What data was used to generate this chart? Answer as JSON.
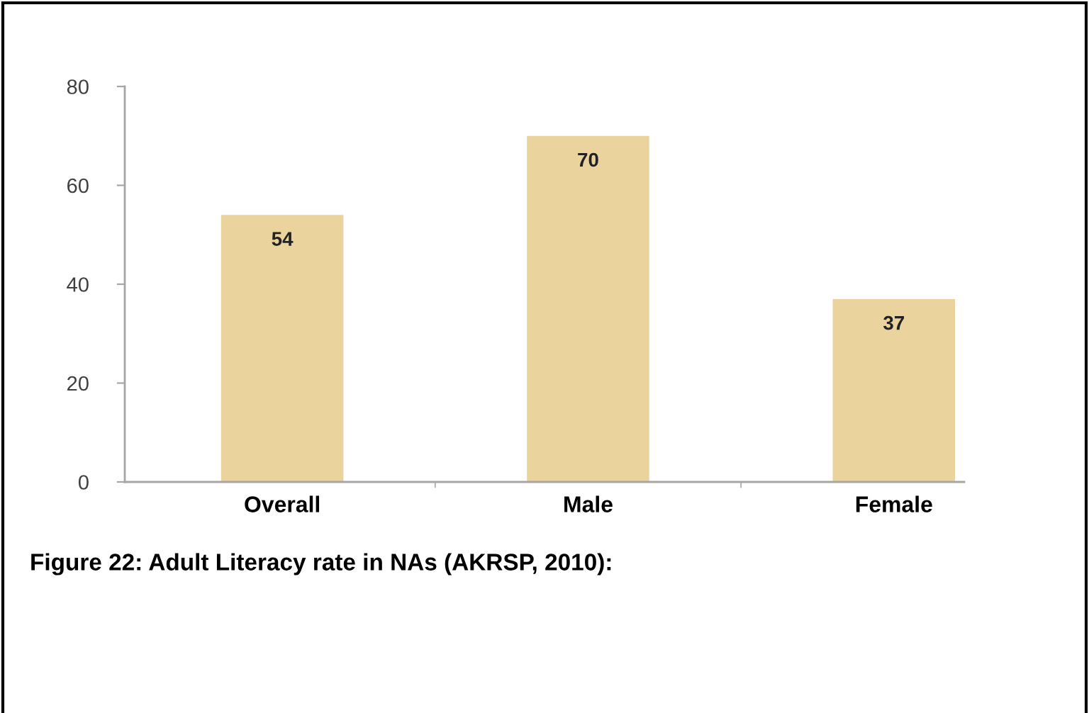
{
  "chart_data": {
    "type": "bar",
    "categories": [
      "Overall",
      "Male",
      "Female"
    ],
    "values": [
      54,
      70,
      37
    ],
    "color": "#ead39d",
    "ylim": [
      0,
      80
    ],
    "yticks": [
      0,
      20,
      40,
      60,
      80
    ],
    "data_labels": true,
    "annotations": [
      "Figure 22: Adult Literacy rate in NAs (AKRSP, 2010):"
    ]
  }
}
